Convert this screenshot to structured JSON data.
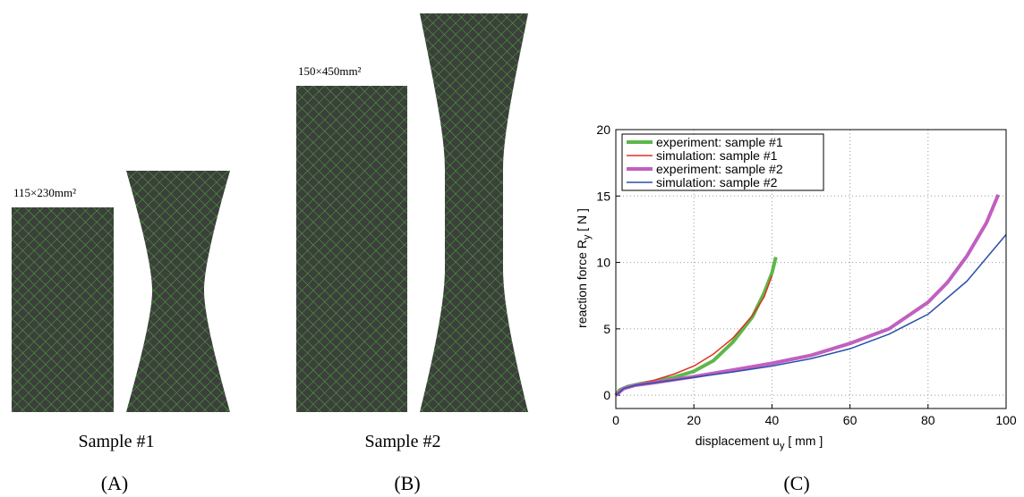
{
  "panels": {
    "a": {
      "dimension": "115×230mm²",
      "caption": "Sample #1",
      "label": "(A)"
    },
    "b": {
      "dimension": "150×450mm²",
      "caption": "Sample #2",
      "label": "(B)"
    }
  },
  "chart_data": {
    "type": "line",
    "label": "(C)",
    "ylabel": [
      "reaction force  R",
      "y",
      "  [ N ]"
    ],
    "xlabel": [
      "displacement  u",
      "y",
      "  [ mm ]"
    ],
    "xlim": [
      0,
      100
    ],
    "ylim": [
      -1,
      20
    ],
    "xticks": [
      0,
      20,
      40,
      60,
      80,
      100
    ],
    "yticks": [
      0,
      5,
      10,
      15,
      20
    ],
    "grid": true,
    "legend": "upper left",
    "series": [
      {
        "name": "experiment: sample #1",
        "color": "#5cb84a",
        "width": 4,
        "x": [
          0,
          1,
          3,
          6,
          10,
          15,
          20,
          25,
          30,
          35,
          38,
          40,
          41
        ],
        "values": [
          0,
          0.4,
          0.65,
          0.85,
          1.05,
          1.35,
          1.8,
          2.6,
          4.0,
          5.9,
          7.7,
          9.2,
          10.4
        ]
      },
      {
        "name": "simulation: sample #1",
        "color": "#e03020",
        "width": 1.5,
        "x": [
          0,
          2,
          5,
          10,
          15,
          20,
          25,
          30,
          35,
          38,
          40
        ],
        "values": [
          0,
          0.5,
          0.8,
          1.15,
          1.6,
          2.2,
          3.1,
          4.3,
          6.0,
          7.4,
          9.0
        ]
      },
      {
        "name": "experiment: sample #2",
        "color": "#c060c0",
        "width": 4,
        "x": [
          0,
          2,
          5,
          10,
          20,
          30,
          40,
          50,
          60,
          70,
          80,
          85,
          90,
          95,
          98
        ],
        "values": [
          0,
          0.5,
          0.75,
          0.95,
          1.4,
          1.9,
          2.4,
          3.0,
          3.9,
          5.0,
          7.0,
          8.5,
          10.5,
          13.0,
          15.1
        ]
      },
      {
        "name": "simulation: sample #2",
        "color": "#2a4fa8",
        "width": 1.5,
        "x": [
          0,
          2,
          5,
          10,
          20,
          30,
          40,
          50,
          60,
          70,
          80,
          90,
          100
        ],
        "values": [
          0,
          0.5,
          0.75,
          0.95,
          1.35,
          1.75,
          2.2,
          2.75,
          3.5,
          4.6,
          6.1,
          8.6,
          12.1
        ]
      }
    ]
  }
}
